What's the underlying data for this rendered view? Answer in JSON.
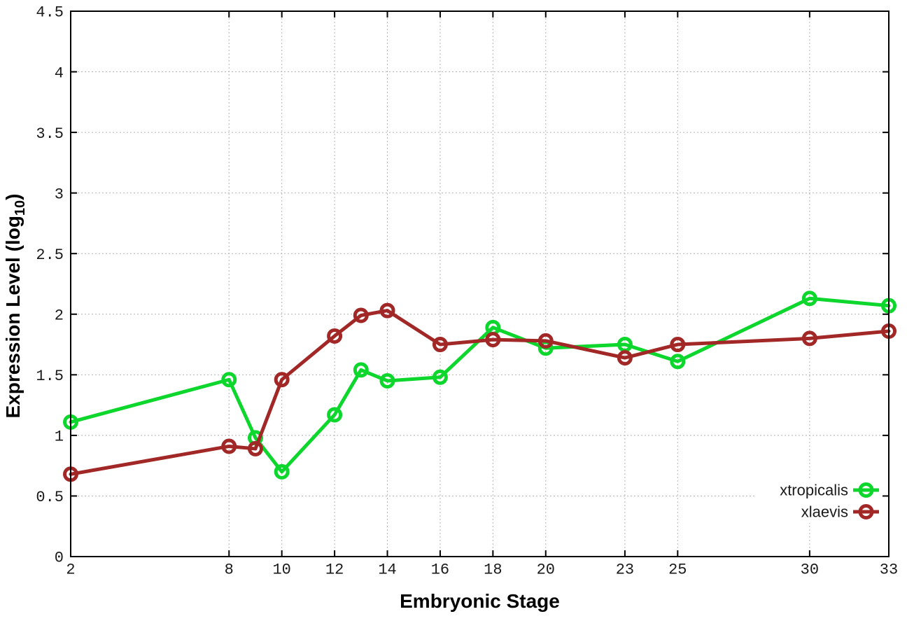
{
  "page": {
    "background": "#ffffff"
  },
  "chart_data": {
    "type": "line",
    "title": "",
    "xlabel": "Embryonic Stage",
    "ylabel": "Expression Level (log10)",
    "ylabel_parts": {
      "main": "Expression Level (log",
      "sub": "10",
      "suffix": ")"
    },
    "xlim": [
      2,
      33
    ],
    "ylim": [
      0,
      4.5
    ],
    "x_ticks": [
      2,
      8,
      10,
      12,
      14,
      16,
      18,
      20,
      23,
      25,
      30,
      33
    ],
    "x_tick_labels": [
      "2",
      "8",
      "10",
      "12",
      "14",
      "16",
      "18",
      "20",
      "23",
      "25",
      "30",
      "33"
    ],
    "y_ticks": [
      0,
      0.5,
      1,
      1.5,
      2,
      2.5,
      3,
      3.5,
      4,
      4.5
    ],
    "y_tick_labels": [
      "0",
      "0.5",
      "1",
      "1.5",
      "2",
      "2.5",
      "3",
      "3.5",
      "4",
      "4.5"
    ],
    "grid": true,
    "legend_position": "bottom-right",
    "x": [
      2,
      8,
      9,
      10,
      12,
      13,
      14,
      16,
      18,
      20,
      23,
      25,
      30,
      33
    ],
    "series": [
      {
        "name": "xtropicalis",
        "color": "#0dd62d",
        "marker": "open-circle",
        "values": [
          1.11,
          1.46,
          0.98,
          0.7,
          1.17,
          1.54,
          1.45,
          1.48,
          1.89,
          1.72,
          1.75,
          1.61,
          2.13,
          2.07
        ]
      },
      {
        "name": "xlaevis",
        "color": "#a12826",
        "marker": "open-circle",
        "values": [
          0.68,
          0.91,
          0.89,
          1.46,
          1.82,
          1.99,
          2.03,
          1.75,
          1.79,
          1.78,
          1.64,
          1.75,
          1.8,
          1.86
        ]
      }
    ],
    "colors": {
      "border": "#000000",
      "grid": "#b4b4b4",
      "tick_text": "#1a1a1a"
    }
  }
}
